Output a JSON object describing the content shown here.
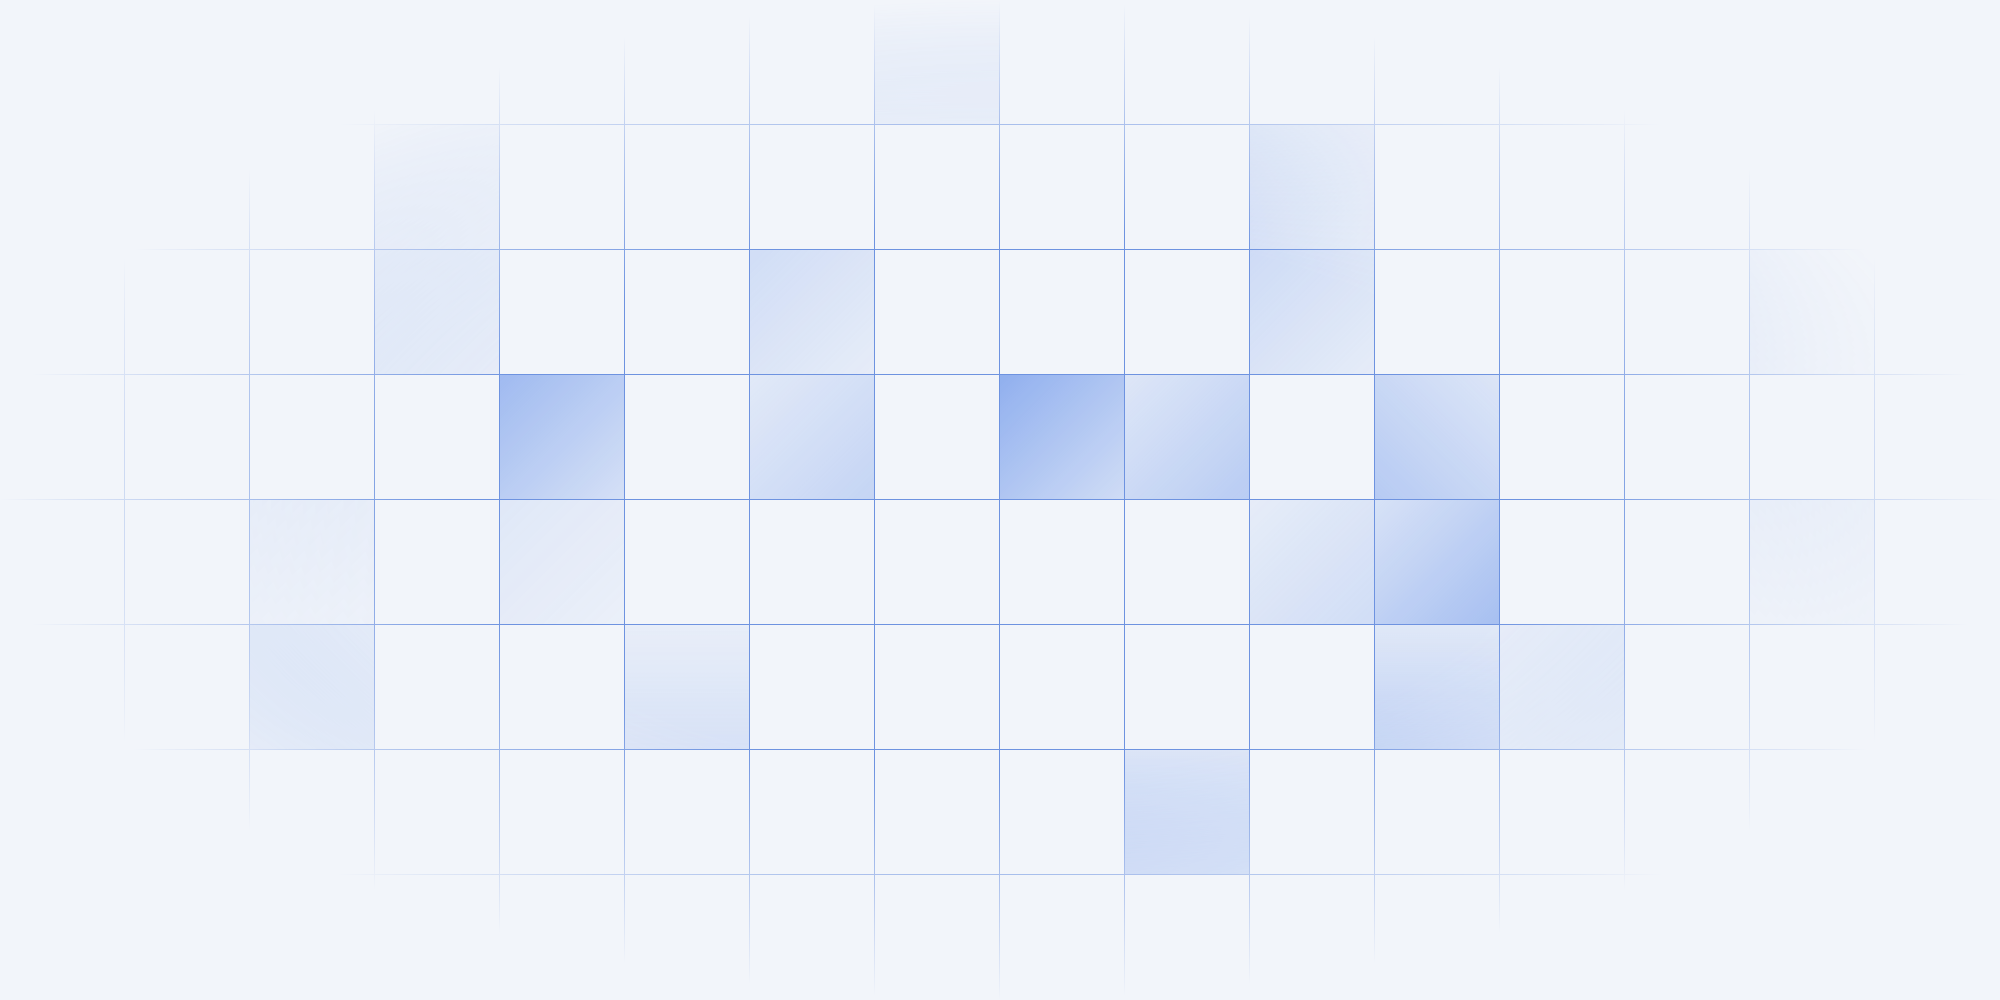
{
  "background_color": "#f2f5fa",
  "grid_line_color": "#6e93e0",
  "tile_color": "#5c8ae8",
  "grid": {
    "columns": 16,
    "rows": 8,
    "highlighted_cells": [
      {
        "col": 7,
        "row": 0,
        "level": 0.35,
        "fade": "to-top"
      },
      {
        "col": 3,
        "row": 1,
        "level": 0.25,
        "fade": "to-top-left"
      },
      {
        "col": 10,
        "row": 1,
        "level": 0.28,
        "fade": "to-top-left"
      },
      {
        "col": 3,
        "row": 2,
        "level": 0.22,
        "fade": "to-top-left"
      },
      {
        "col": 6,
        "row": 2,
        "level": 0.22,
        "fade": "to-top-left"
      },
      {
        "col": 10,
        "row": 2,
        "level": 0.24,
        "fade": "to-top-left"
      },
      {
        "col": 4,
        "row": 3,
        "level": 0.55,
        "fade": "to-top-left"
      },
      {
        "col": 6,
        "row": 3,
        "level": 0.3,
        "fade": "to-bottom-right"
      },
      {
        "col": 8,
        "row": 3,
        "level": 0.65,
        "fade": "to-top-left"
      },
      {
        "col": 9,
        "row": 3,
        "level": 0.38,
        "fade": "to-bottom-right"
      },
      {
        "col": 11,
        "row": 3,
        "level": 0.4,
        "fade": "to-bottom-left"
      },
      {
        "col": 14,
        "row": 2,
        "level": 0.18,
        "fade": "to-top-left"
      },
      {
        "col": 2,
        "row": 4,
        "level": 0.12,
        "fade": "to-top-left"
      },
      {
        "col": 4,
        "row": 4,
        "level": 0.12,
        "fade": "to-top-left"
      },
      {
        "col": 10,
        "row": 4,
        "level": 0.22,
        "fade": "to-bottom-right"
      },
      {
        "col": 11,
        "row": 4,
        "level": 0.5,
        "fade": "to-bottom-right"
      },
      {
        "col": 14,
        "row": 4,
        "level": 0.16,
        "fade": "to-top-right"
      },
      {
        "col": 2,
        "row": 5,
        "level": 0.38,
        "fade": "to-bottom-left"
      },
      {
        "col": 5,
        "row": 5,
        "level": 0.18,
        "fade": "to-bottom"
      },
      {
        "col": 11,
        "row": 5,
        "level": 0.34,
        "fade": "to-bottom"
      },
      {
        "col": 12,
        "row": 5,
        "level": 0.22,
        "fade": "to-bottom-right"
      },
      {
        "col": 9,
        "row": 6,
        "level": 0.42,
        "fade": "to-bottom"
      }
    ]
  }
}
